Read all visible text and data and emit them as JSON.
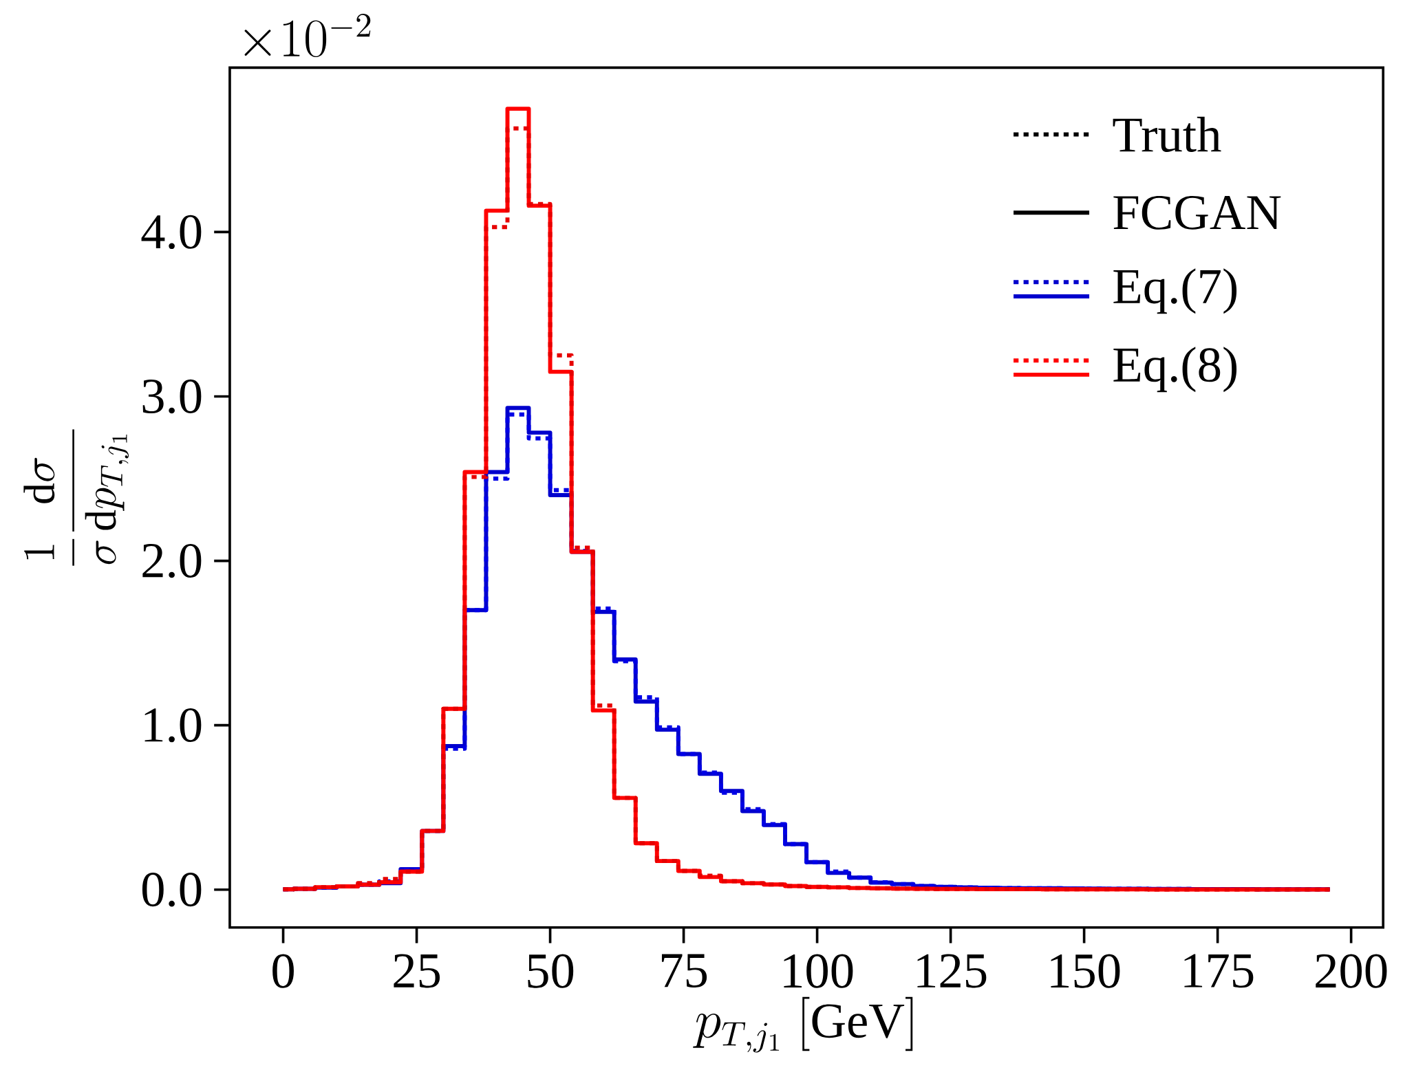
{
  "chart_data": {
    "type": "histogram",
    "xlabel": "p_{T,j_1}\\ [\\mathrm{GeV}]",
    "ylabel": "\\frac{1}{\\sigma}\\frac{\\mathrm{d}\\sigma}{\\mathrm{d}p_{T,j_1}}",
    "annotations": [
      "\\times 10^{-2}",
      "Truth",
      "FCGAN"
    ],
    "bins": [
      0,
      2,
      6,
      10,
      14,
      18,
      22,
      26,
      30,
      34,
      38,
      42,
      46,
      50,
      54,
      58,
      62,
      66,
      70,
      74,
      78,
      82,
      86,
      90,
      94,
      98,
      102,
      106,
      110,
      114,
      118,
      122,
      126,
      130,
      134,
      138,
      142,
      146,
      150,
      154,
      158,
      162,
      166,
      170,
      174,
      178,
      182,
      186,
      190,
      194,
      196
    ],
    "series": [
      {
        "name": "Eq.(7)",
        "color": "#0000cd",
        "line_style": "solid",
        "values": [
          0.002,
          0.005,
          0.012,
          0.02,
          0.03,
          0.04,
          0.125,
          0.357,
          0.873,
          1.7,
          2.54,
          2.93,
          2.78,
          2.4,
          2.055,
          1.69,
          1.4,
          1.144,
          0.973,
          0.825,
          0.705,
          0.6,
          0.478,
          0.393,
          0.277,
          0.167,
          0.102,
          0.073,
          0.043,
          0.034,
          0.022,
          0.017,
          0.014,
          0.012,
          0.01,
          0.009,
          0.008,
          0.007,
          0.006,
          0.005,
          0.005,
          0.004,
          0.004,
          0.003,
          0.003,
          0.003,
          0.002,
          0.002,
          0.002,
          0.002
        ]
      },
      {
        "color": "#0000e6",
        "line_style": "dotted",
        "values": [
          0.002,
          0.005,
          0.012,
          0.02,
          0.03,
          0.05,
          0.12,
          0.357,
          0.857,
          1.7,
          2.5,
          2.89,
          2.745,
          2.43,
          2.06,
          1.71,
          1.39,
          1.17,
          0.987,
          0.825,
          0.712,
          0.59,
          0.49,
          0.398,
          0.277,
          0.167,
          0.11,
          0.073,
          0.045,
          0.034,
          0.022,
          0.017,
          0.014,
          0.012,
          0.01,
          0.009,
          0.008,
          0.007,
          0.006,
          0.005,
          0.005,
          0.004,
          0.004,
          0.003,
          0.003,
          0.003,
          0.002,
          0.002,
          0.002,
          0.002
        ]
      },
      {
        "name": "Eq.(8)",
        "color": "#ff0000",
        "line_style": "solid",
        "values": [
          0.002,
          0.005,
          0.015,
          0.02,
          0.03,
          0.045,
          0.11,
          0.357,
          1.1,
          2.54,
          4.13,
          4.75,
          4.16,
          3.15,
          2.055,
          1.09,
          0.558,
          0.282,
          0.174,
          0.114,
          0.077,
          0.051,
          0.039,
          0.031,
          0.022,
          0.017,
          0.014,
          0.01,
          0.008,
          0.006,
          0.005,
          0.004,
          0.004,
          0.003,
          0.003,
          0.003,
          0.002,
          0.002,
          0.002,
          0.002,
          0.002,
          0.001,
          0.001,
          0.001,
          0.001,
          0.001,
          0.001,
          0.001,
          0.001,
          0.001
        ]
      },
      {
        "color": "#e60000",
        "line_style": "dotted",
        "values": [
          0.002,
          0.005,
          0.015,
          0.02,
          0.04,
          0.065,
          0.11,
          0.357,
          1.1,
          2.51,
          4.03,
          4.63,
          4.17,
          3.25,
          2.08,
          1.12,
          0.558,
          0.282,
          0.174,
          0.114,
          0.085,
          0.051,
          0.039,
          0.031,
          0.022,
          0.017,
          0.014,
          0.01,
          0.008,
          0.006,
          0.005,
          0.004,
          0.004,
          0.003,
          0.003,
          0.003,
          0.002,
          0.002,
          0.002,
          0.002,
          0.002,
          0.001,
          0.001,
          0.001,
          0.001,
          0.001,
          0.001,
          0.001,
          0.001,
          0.001
        ]
      }
    ],
    "xlim": [
      -10,
      206
    ],
    "ylim": [
      -0.23,
      5.0
    ],
    "xticks": [
      0,
      25,
      50,
      75,
      100,
      125,
      150,
      175,
      200
    ],
    "yticks": [
      {
        "value": 0,
        "label": "0.0"
      },
      {
        "value": 1,
        "label": "1.0"
      },
      {
        "value": 2,
        "label": "2.0"
      },
      {
        "value": 3,
        "label": "3.0"
      },
      {
        "value": 4,
        "label": "4.0"
      }
    ],
    "legend": "top right"
  }
}
